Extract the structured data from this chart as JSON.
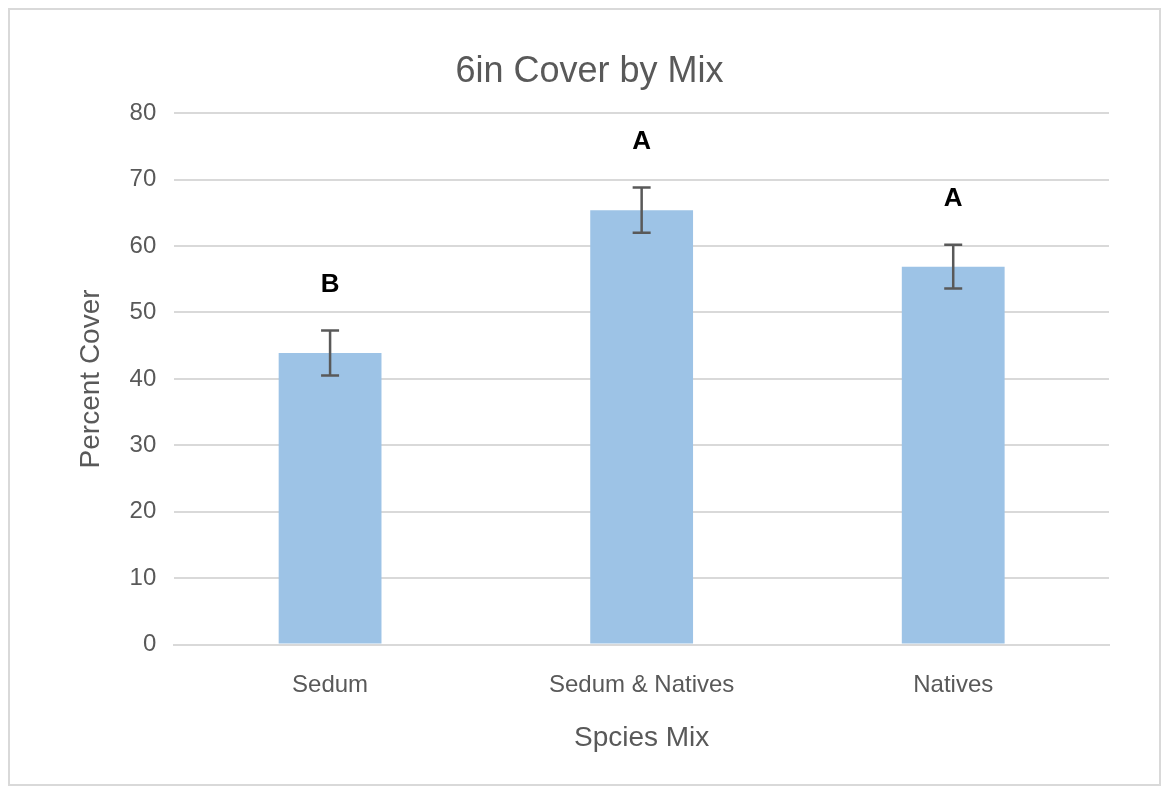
{
  "chart_data": {
    "type": "bar",
    "title": "6in Cover by Mix",
    "xlabel": "Spcies Mix",
    "ylabel": "Percent Cover",
    "categories": [
      "Sedum",
      "Sedum & Natives",
      "Natives"
    ],
    "values": [
      43.9,
      65.4,
      56.9
    ],
    "errors": [
      3.4,
      3.4,
      3.3
    ],
    "color": "#9dc3e6",
    "ylim": [
      0,
      80
    ],
    "yticks": [
      0,
      10,
      20,
      30,
      40,
      50,
      60,
      70,
      80
    ],
    "grid": "y",
    "legend": false,
    "annotations": [
      "B",
      "A",
      "A"
    ]
  }
}
